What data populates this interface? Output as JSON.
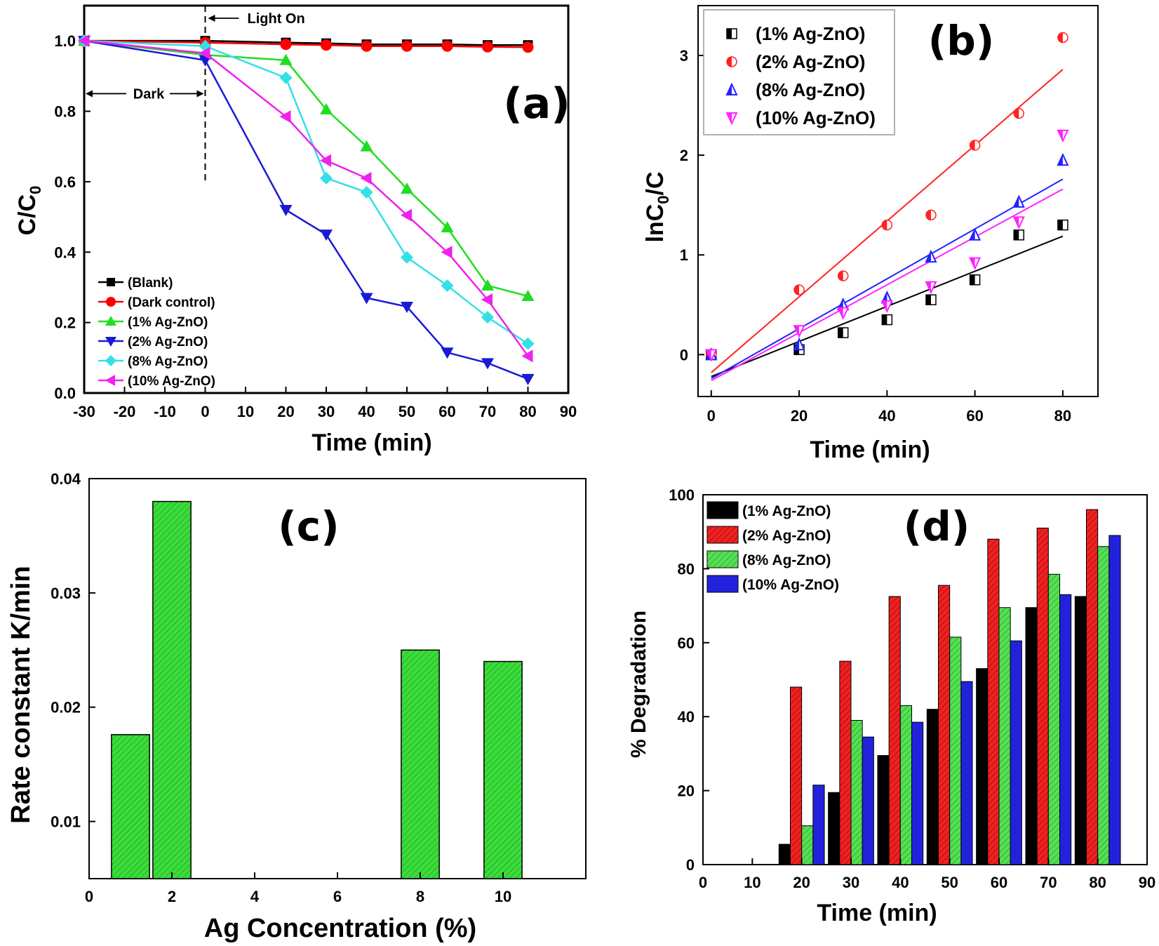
{
  "chart_data": [
    {
      "panel": "(a)",
      "type": "line",
      "xlabel": "Time (min)",
      "ylabel": "C/C",
      "ylabel_sub": "0",
      "xlim": [
        -30,
        90
      ],
      "ylim": [
        0.0,
        1.1
      ],
      "xticks": [
        -30,
        -20,
        -10,
        0,
        10,
        20,
        30,
        40,
        50,
        60,
        70,
        80,
        90
      ],
      "yticks": [
        "0.0",
        "0.2",
        "0.4",
        "0.6",
        "0.8",
        "1.0"
      ],
      "annotations": {
        "light_on": "Light On",
        "dark": "Dark"
      },
      "series": [
        {
          "name": "(Blank)",
          "color": "#000000",
          "marker": "square",
          "x": [
            -30,
            0,
            20,
            30,
            40,
            50,
            60,
            70,
            80
          ],
          "y": [
            1.0,
            1.0,
            0.995,
            0.993,
            0.99,
            0.99,
            0.99,
            0.988,
            0.988
          ]
        },
        {
          "name": "(Dark control)",
          "color": "#ff0000",
          "marker": "circle",
          "x": [
            -30,
            0,
            20,
            30,
            40,
            50,
            60,
            70,
            80
          ],
          "y": [
            1.0,
            0.995,
            0.99,
            0.988,
            0.985,
            0.985,
            0.985,
            0.983,
            0.982
          ]
        },
        {
          "name": "(1% Ag-ZnO)",
          "color": "#22dd22",
          "marker": "triangle-up",
          "x": [
            -30,
            0,
            20,
            30,
            40,
            50,
            60,
            70,
            80
          ],
          "y": [
            1.0,
            0.96,
            0.945,
            0.805,
            0.7,
            0.58,
            0.47,
            0.305,
            0.275
          ]
        },
        {
          "name": "(2% Ag-ZnO)",
          "color": "#1a1ad6",
          "marker": "triangle-down",
          "x": [
            -30,
            0,
            20,
            30,
            40,
            50,
            60,
            70,
            80
          ],
          "y": [
            1.0,
            0.945,
            0.52,
            0.45,
            0.27,
            0.245,
            0.115,
            0.085,
            0.04
          ]
        },
        {
          "name": "(8% Ag-ZnO)",
          "color": "#33e0e8",
          "marker": "diamond",
          "x": [
            -30,
            0,
            20,
            30,
            40,
            50,
            60,
            70,
            80
          ],
          "y": [
            1.0,
            0.985,
            0.895,
            0.61,
            0.57,
            0.385,
            0.305,
            0.215,
            0.14
          ]
        },
        {
          "name": "(10% Ag-ZnO)",
          "color": "#ee22ee",
          "marker": "triangle-left",
          "x": [
            -30,
            0,
            20,
            30,
            40,
            50,
            60,
            70,
            80
          ],
          "y": [
            1.0,
            0.965,
            0.785,
            0.66,
            0.61,
            0.505,
            0.4,
            0.265,
            0.105
          ]
        }
      ]
    },
    {
      "panel": "(b)",
      "type": "scatter",
      "xlabel": "Time (min)",
      "ylabel": "lnC",
      "ylabel_sub": "0",
      "ylabel_tail": "/C",
      "xlim": [
        -3,
        88
      ],
      "ylim": [
        -0.42,
        3.5
      ],
      "xticks": [
        0,
        20,
        40,
        60,
        80
      ],
      "yticks": [
        0,
        1,
        2,
        3
      ],
      "series": [
        {
          "name": "(1% Ag-ZnO)",
          "color": "#000000",
          "marker": "half-square",
          "x": [
            0,
            20,
            30,
            40,
            50,
            60,
            70,
            80
          ],
          "y": [
            0,
            0.05,
            0.22,
            0.35,
            0.55,
            0.75,
            1.2,
            1.3
          ],
          "fit": {
            "slope": 0.0176,
            "intercept": -0.22
          }
        },
        {
          "name": "(2% Ag-ZnO)",
          "color": "#ff2222",
          "marker": "half-circle",
          "x": [
            0,
            20,
            30,
            40,
            50,
            60,
            70,
            80
          ],
          "y": [
            0,
            0.65,
            0.79,
            1.3,
            1.4,
            2.1,
            2.42,
            3.18
          ],
          "fit": {
            "slope": 0.038,
            "intercept": -0.18
          }
        },
        {
          "name": "(8% Ag-ZnO)",
          "color": "#2222ff",
          "marker": "triangle-up-open",
          "x": [
            0,
            20,
            30,
            40,
            50,
            60,
            70,
            80
          ],
          "y": [
            0,
            0.1,
            0.5,
            0.57,
            0.98,
            1.2,
            1.53,
            1.95
          ],
          "fit": {
            "slope": 0.025,
            "intercept": -0.24
          }
        },
        {
          "name": "(10% Ag-ZnO)",
          "color": "#ff22ff",
          "marker": "triangle-down-open",
          "x": [
            0,
            20,
            30,
            40,
            50,
            60,
            70,
            80
          ],
          "y": [
            0,
            0.24,
            0.42,
            0.49,
            0.68,
            0.92,
            1.33,
            2.2
          ],
          "fit": {
            "slope": 0.024,
            "intercept": -0.26
          }
        }
      ]
    },
    {
      "panel": "(c)",
      "type": "bar",
      "xlabel": "Ag Concentration (%)",
      "ylabel": "Rate constant K/min",
      "xlim": [
        0,
        12
      ],
      "ylim": [
        0.005,
        0.04
      ],
      "xticks": [
        0,
        2,
        4,
        6,
        8,
        10
      ],
      "yticks": [
        "0.01",
        "0.02",
        "0.03",
        "0.04"
      ],
      "bar_color": "#33dd33",
      "categories": [
        1,
        2,
        8,
        10
      ],
      "values": [
        0.0176,
        0.038,
        0.025,
        0.024
      ]
    },
    {
      "panel": "(d)",
      "type": "bar",
      "xlabel": "Time (min)",
      "ylabel": "% Degradation",
      "xlim": [
        0,
        90
      ],
      "ylim": [
        0,
        100
      ],
      "xticks": [
        0,
        10,
        20,
        30,
        40,
        50,
        60,
        70,
        80,
        90
      ],
      "yticks": [
        0,
        20,
        40,
        60,
        80,
        100
      ],
      "categories": [
        20,
        30,
        40,
        50,
        60,
        70,
        80
      ],
      "series": [
        {
          "name": "(1% Ag-ZnO)",
          "color": "#000000",
          "values": [
            5.5,
            19.5,
            29.5,
            42,
            53,
            69.5,
            72.5
          ]
        },
        {
          "name": "(2% Ag-ZnO)",
          "color": "#ee2222",
          "values": [
            48,
            55,
            72.5,
            75.5,
            88,
            91,
            96
          ]
        },
        {
          "name": "(8% Ag-ZnO)",
          "color": "#44dd44",
          "values": [
            10.5,
            39,
            43,
            61.5,
            69.5,
            78.5,
            86
          ]
        },
        {
          "name": "(10% Ag-ZnO)",
          "color": "#2222dd",
          "values": [
            21.5,
            34.5,
            38.5,
            49.5,
            60.5,
            73,
            89
          ]
        }
      ]
    }
  ]
}
